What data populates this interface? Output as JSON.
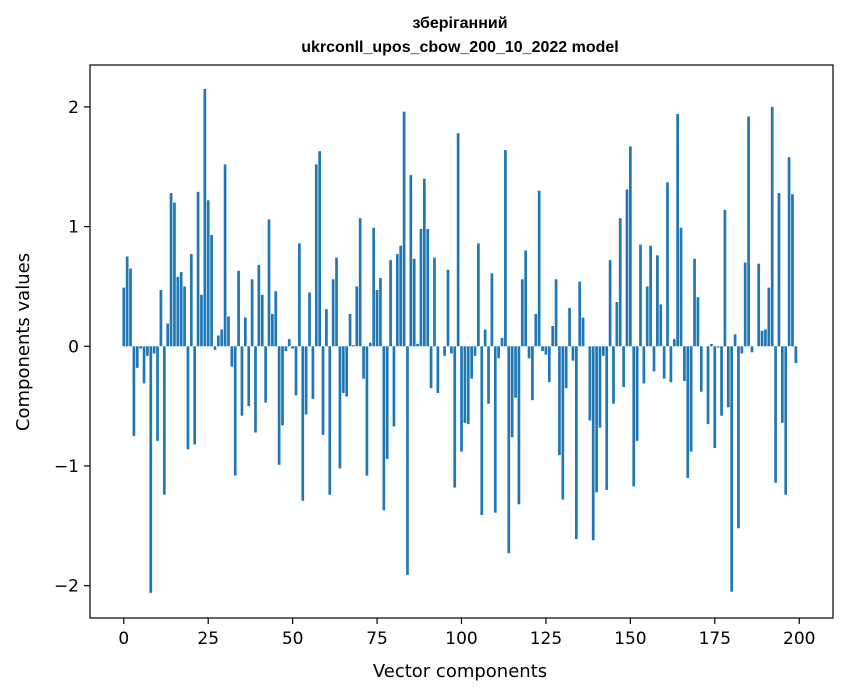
{
  "chart_data": {
    "type": "bar",
    "title": "зберіганний",
    "subtitle": "ukrconll_upos_cbow_200_10_2022 model",
    "xlabel": "Vector components",
    "ylabel": "Components values",
    "xlim": [
      -10,
      210
    ],
    "ylim": [
      -2.27,
      2.35
    ],
    "xticks": [
      0,
      25,
      50,
      75,
      100,
      125,
      150,
      175,
      200
    ],
    "yticks": [
      -2,
      -1,
      0,
      1,
      2
    ],
    "xtick_labels": [
      "0",
      "25",
      "50",
      "75",
      "100",
      "125",
      "150",
      "175",
      "200"
    ],
    "ytick_labels": [
      "−2",
      "−1",
      "0",
      "1",
      "2"
    ],
    "grid": false,
    "color": "#1f77b4",
    "x": [
      0,
      1,
      2,
      3,
      4,
      5,
      6,
      7,
      8,
      9,
      10,
      11,
      12,
      13,
      14,
      15,
      16,
      17,
      18,
      19,
      20,
      21,
      22,
      23,
      24,
      25,
      26,
      27,
      28,
      29,
      30,
      31,
      32,
      33,
      34,
      35,
      36,
      37,
      38,
      39,
      40,
      41,
      42,
      43,
      44,
      45,
      46,
      47,
      48,
      49,
      50,
      51,
      52,
      53,
      54,
      55,
      56,
      57,
      58,
      59,
      60,
      61,
      62,
      63,
      64,
      65,
      66,
      67,
      68,
      69,
      70,
      71,
      72,
      73,
      74,
      75,
      76,
      77,
      78,
      79,
      80,
      81,
      82,
      83,
      84,
      85,
      86,
      87,
      88,
      89,
      90,
      91,
      92,
      93,
      94,
      95,
      96,
      97,
      98,
      99,
      100,
      101,
      102,
      103,
      104,
      105,
      106,
      107,
      108,
      109,
      110,
      111,
      112,
      113,
      114,
      115,
      116,
      117,
      118,
      119,
      120,
      121,
      122,
      123,
      124,
      125,
      126,
      127,
      128,
      129,
      130,
      131,
      132,
      133,
      134,
      135,
      136,
      137,
      138,
      139,
      140,
      141,
      142,
      143,
      144,
      145,
      146,
      147,
      148,
      149,
      150,
      151,
      152,
      153,
      154,
      155,
      156,
      157,
      158,
      159,
      160,
      161,
      162,
      163,
      164,
      165,
      166,
      167,
      168,
      169,
      170,
      171,
      172,
      173,
      174,
      175,
      176,
      177,
      178,
      179,
      180,
      181,
      182,
      183,
      184,
      185,
      186,
      187,
      188,
      189,
      190,
      191,
      192,
      193,
      194,
      195,
      196,
      197,
      198,
      199
    ],
    "values": [
      0.49,
      0.75,
      0.65,
      -0.75,
      -0.18,
      -0.02,
      -0.31,
      -0.08,
      -2.06,
      -0.06,
      -0.79,
      0.47,
      -1.24,
      0.19,
      1.28,
      1.2,
      0.58,
      0.62,
      0.5,
      -0.86,
      0.77,
      -0.82,
      1.29,
      0.43,
      2.15,
      1.22,
      0.93,
      -0.03,
      0.09,
      0.14,
      1.52,
      0.25,
      -0.17,
      -1.08,
      0.63,
      -0.58,
      0.24,
      -0.5,
      0.56,
      -0.72,
      0.68,
      0.43,
      -0.47,
      1.06,
      0.27,
      0.46,
      -0.99,
      -0.66,
      -0.04,
      0.06,
      -0.02,
      -0.41,
      0.86,
      -1.29,
      -0.57,
      0.45,
      -0.44,
      1.52,
      1.63,
      -0.74,
      0.31,
      -1.24,
      0.56,
      0.74,
      -1.02,
      -0.39,
      -0.42,
      0.27,
      0.01,
      0.5,
      1.07,
      -0.27,
      -1.08,
      0.03,
      0.99,
      0.47,
      0.57,
      -1.37,
      -0.94,
      0.72,
      -0.67,
      0.77,
      0.84,
      1.96,
      -1.91,
      1.43,
      0.73,
      0.02,
      0.98,
      1.4,
      0.98,
      -0.35,
      0.74,
      -0.39,
      0.0,
      -0.08,
      0.64,
      -0.06,
      -1.18,
      1.78,
      -0.88,
      -0.64,
      -0.65,
      -0.27,
      -0.08,
      0.86,
      -1.41,
      0.14,
      -0.48,
      0.61,
      -1.39,
      -0.1,
      0.07,
      1.64,
      -1.73,
      -0.76,
      -0.43,
      -1.32,
      0.56,
      0.8,
      -0.1,
      -0.45,
      0.27,
      1.3,
      -0.04,
      -0.07,
      -0.3,
      0.17,
      0.56,
      -0.91,
      -1.28,
      -0.35,
      0.32,
      -0.12,
      -1.61,
      0.54,
      0.24,
      0.0,
      -0.62,
      -1.62,
      -1.22,
      -0.68,
      -0.08,
      -1.2,
      0.72,
      -0.48,
      0.37,
      1.07,
      -0.34,
      1.31,
      1.67,
      -1.17,
      -0.79,
      0.85,
      -0.31,
      0.5,
      0.84,
      -0.21,
      0.76,
      0.35,
      -0.27,
      1.37,
      -0.3,
      0.06,
      1.94,
      0.99,
      -0.29,
      -1.1,
      -0.88,
      0.73,
      0.41,
      -0.38,
      0.0,
      -0.65,
      0.02,
      -0.85,
      -0.01,
      -0.58,
      1.14,
      -0.51,
      -2.05,
      0.1,
      -1.52,
      -0.06,
      0.7,
      1.92,
      -0.05,
      0.0,
      0.69,
      0.13,
      0.14,
      0.49,
      2.0,
      -1.14,
      1.28,
      -0.64,
      -1.24,
      1.58,
      1.27,
      -0.14
    ]
  }
}
